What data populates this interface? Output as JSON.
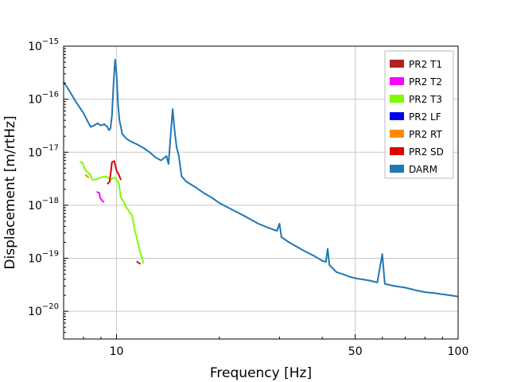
{
  "chart_data": {
    "type": "line",
    "title": "",
    "xlabel": "Frequency [Hz]",
    "ylabel": "Displacement [m/rtHz]",
    "xscale": "log",
    "yscale": "log",
    "xlim": [
      7,
      100
    ],
    "ylim": [
      3e-21,
      1e-15
    ],
    "grid": true,
    "legend_position": "top-right",
    "x_ticks": [
      {
        "value": 10,
        "label": "10"
      },
      {
        "value": 50,
        "label": "50"
      },
      {
        "value": 100,
        "label": "100"
      }
    ],
    "y_ticks": [
      {
        "value": 1e-20,
        "base": "10",
        "exp": "−20"
      },
      {
        "value": 1e-19,
        "base": "10",
        "exp": "−19"
      },
      {
        "value": 1e-18,
        "base": "10",
        "exp": "−18"
      },
      {
        "value": 1e-17,
        "base": "10",
        "exp": "−17"
      },
      {
        "value": 1e-16,
        "base": "10",
        "exp": "−16"
      },
      {
        "value": 1e-15,
        "base": "10",
        "exp": "−15"
      }
    ],
    "series": [
      {
        "name": "PR2 T1",
        "color": "#b22222",
        "points": [
          [
            11.45,
            8.8e-20
          ],
          [
            11.6,
            8.2e-20
          ],
          [
            11.75,
            7.8e-20
          ]
        ]
      },
      {
        "name": "PR2 T2",
        "color": "#ff00ff",
        "points": [
          [
            8.75,
            1.8e-18
          ],
          [
            8.9,
            1.7e-18
          ],
          [
            8.95,
            1.4e-18
          ],
          [
            9.1,
            1.2e-18
          ],
          [
            9.2,
            1.15e-18
          ]
        ]
      },
      {
        "name": "PR2 T3",
        "color": "#7cfc00",
        "points": [
          [
            7.8,
            6.5e-18
          ],
          [
            7.95,
            6.3e-18
          ],
          [
            8.05,
            5e-18
          ],
          [
            8.2,
            4.2e-18
          ],
          [
            8.35,
            3.9e-18
          ],
          [
            8.5,
            3e-18
          ],
          [
            8.7,
            3.1e-18
          ],
          [
            9.0,
            3.3e-18
          ],
          [
            9.2,
            3.5e-18
          ],
          [
            9.4,
            3.4e-18
          ],
          [
            9.6,
            3e-18
          ],
          [
            9.8,
            3.3e-18
          ],
          [
            10.0,
            3.1e-18
          ],
          [
            10.15,
            2.6e-18
          ],
          [
            10.3,
            1.4e-18
          ],
          [
            10.5,
            1.15e-18
          ],
          [
            10.7,
            9e-19
          ],
          [
            10.9,
            7.5e-19
          ],
          [
            11.1,
            6.5e-19
          ],
          [
            11.3,
            3.5e-19
          ],
          [
            11.5,
            2.2e-19
          ],
          [
            11.7,
            1.4e-19
          ],
          [
            11.85,
            1.05e-19
          ],
          [
            12.0,
            8e-20
          ]
        ]
      },
      {
        "name": "PR2 LF",
        "color": "#0000ee",
        "points": []
      },
      {
        "name": "PR2 RT",
        "color": "#ff8c00",
        "points": [
          [
            8.1,
            3.8e-18
          ],
          [
            8.2,
            3.5e-18
          ],
          [
            8.3,
            3.3e-18
          ]
        ]
      },
      {
        "name": "PR2 SD",
        "color": "#e00000",
        "points": [
          [
            9.4,
            2.5e-18
          ],
          [
            9.55,
            2.8e-18
          ],
          [
            9.7,
            6.5e-18
          ],
          [
            9.85,
            6.8e-18
          ],
          [
            10.0,
            4.5e-18
          ],
          [
            10.15,
            3.8e-18
          ],
          [
            10.3,
            3e-18
          ]
        ]
      },
      {
        "name": "DARM",
        "color": "#1f77b4",
        "points": [
          [
            7.0,
            2.1e-16
          ],
          [
            7.2,
            1.6e-16
          ],
          [
            7.4,
            1.2e-16
          ],
          [
            7.6,
            9e-17
          ],
          [
            7.8,
            7e-17
          ],
          [
            8.0,
            5.5e-17
          ],
          [
            8.2,
            4e-17
          ],
          [
            8.4,
            3e-17
          ],
          [
            8.6,
            3.2e-17
          ],
          [
            8.8,
            3.5e-17
          ],
          [
            9.0,
            3.2e-17
          ],
          [
            9.2,
            3.4e-17
          ],
          [
            9.4,
            3e-17
          ],
          [
            9.5,
            2.6e-17
          ],
          [
            9.6,
            2.8e-17
          ],
          [
            9.7,
            5e-17
          ],
          [
            9.8,
            2e-16
          ],
          [
            9.9,
            5.6e-16
          ],
          [
            10.0,
            3e-16
          ],
          [
            10.1,
            8e-17
          ],
          [
            10.2,
            4e-17
          ],
          [
            10.4,
            2.2e-17
          ],
          [
            10.7,
            1.8e-17
          ],
          [
            11.0,
            1.6e-17
          ],
          [
            11.5,
            1.4e-17
          ],
          [
            12.0,
            1.2e-17
          ],
          [
            12.5,
            1e-17
          ],
          [
            13.0,
            8e-18
          ],
          [
            13.5,
            7e-18
          ],
          [
            14.0,
            8.5e-18
          ],
          [
            14.2,
            6e-18
          ],
          [
            14.4,
            2e-17
          ],
          [
            14.6,
            6.5e-17
          ],
          [
            14.8,
            2.5e-17
          ],
          [
            15.0,
            1.2e-17
          ],
          [
            15.2,
            9e-18
          ],
          [
            15.5,
            3.5e-18
          ],
          [
            16.0,
            2.8e-18
          ],
          [
            17.0,
            2.2e-18
          ],
          [
            18.0,
            1.7e-18
          ],
          [
            19.0,
            1.4e-18
          ],
          [
            20.0,
            1.1e-18
          ],
          [
            22.0,
            8e-19
          ],
          [
            24.0,
            6e-19
          ],
          [
            26.0,
            4.5e-19
          ],
          [
            28.0,
            3.7e-19
          ],
          [
            29.5,
            3.3e-19
          ],
          [
            30.0,
            4.5e-19
          ],
          [
            30.4,
            2.5e-19
          ],
          [
            32.0,
            2e-19
          ],
          [
            34.0,
            1.6e-19
          ],
          [
            36.0,
            1.3e-19
          ],
          [
            38.0,
            1.1e-19
          ],
          [
            40.0,
            9e-20
          ],
          [
            41.0,
            8.5e-20
          ],
          [
            41.5,
            1.5e-19
          ],
          [
            42.0,
            7.5e-20
          ],
          [
            44.0,
            5.5e-20
          ],
          [
            46.0,
            5e-20
          ],
          [
            48.0,
            4.5e-20
          ],
          [
            50.0,
            4.2e-20
          ],
          [
            55.0,
            3.8e-20
          ],
          [
            58.0,
            3.5e-20
          ],
          [
            60.0,
            1.2e-19
          ],
          [
            61.0,
            3.3e-20
          ],
          [
            65.0,
            3e-20
          ],
          [
            70.0,
            2.8e-20
          ],
          [
            75.0,
            2.5e-20
          ],
          [
            80.0,
            2.3e-20
          ],
          [
            85.0,
            2.2e-20
          ],
          [
            90.0,
            2.1e-20
          ],
          [
            95.0,
            2e-20
          ],
          [
            100.0,
            1.9e-20
          ]
        ]
      }
    ]
  }
}
